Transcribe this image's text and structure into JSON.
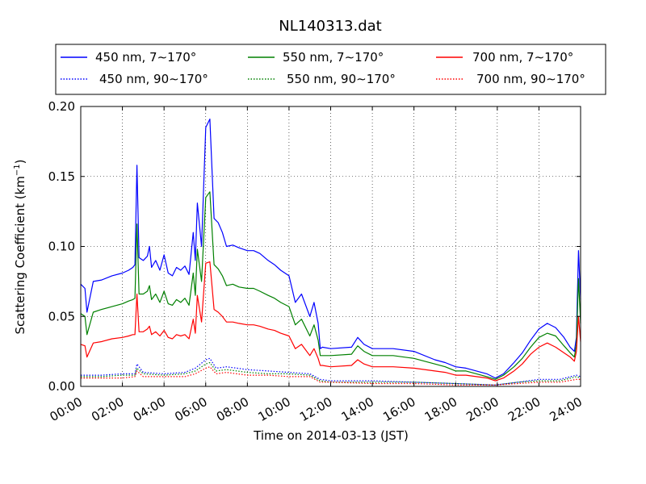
{
  "chart_data": {
    "type": "line",
    "title": "NL140313.dat",
    "xlabel": "Time on 2014-03-13 (JST)",
    "ylabel": "Scattering Coefficient (km",
    "ylabel_unit_exponent": "−1",
    "ylabel_close": ")",
    "xlim": [
      0,
      24
    ],
    "ylim": [
      0,
      0.2
    ],
    "x_ticks": [
      0,
      2,
      4,
      6,
      8,
      10,
      12,
      14,
      16,
      18,
      20,
      22,
      24
    ],
    "x_tick_labels": [
      "00:00",
      "02:00",
      "04:00",
      "06:00",
      "08:00",
      "10:00",
      "12:00",
      "14:00",
      "16:00",
      "18:00",
      "20:00",
      "22:00",
      "24:00"
    ],
    "y_ticks": [
      0,
      0.05,
      0.1,
      0.15,
      0.2
    ],
    "y_tick_labels": [
      "0.00",
      "0.05",
      "0.10",
      "0.15",
      "0.20"
    ],
    "grid": true,
    "legend_position": "top, above plot, 3 columns",
    "x_unit": "hours",
    "series": [
      {
        "name": "450 nm, 7∼170°",
        "color": "#0000ff",
        "style": "solid",
        "x": [
          0,
          0.2,
          0.3,
          0.6,
          1,
          1.5,
          2,
          2.3,
          2.5,
          2.6,
          2.7,
          2.8,
          3,
          3.2,
          3.3,
          3.4,
          3.6,
          3.8,
          4,
          4.2,
          4.4,
          4.6,
          4.8,
          5,
          5.2,
          5.4,
          5.5,
          5.6,
          5.8,
          6,
          6.2,
          6.4,
          6.6,
          6.8,
          7,
          7.3,
          7.6,
          8,
          8.3,
          8.6,
          9,
          9.3,
          9.6,
          10,
          10.3,
          10.6,
          11,
          11.2,
          11.4,
          11.5,
          11.6,
          12,
          13,
          13.3,
          13.6,
          14,
          15,
          16,
          17,
          17.5,
          18,
          18.5,
          19,
          19.5,
          19.9,
          20.3,
          20.8,
          21.2,
          21.6,
          22,
          22.4,
          22.8,
          23.2,
          23.5,
          23.7,
          23.8,
          23.9,
          24
        ],
        "y": [
          0.073,
          0.07,
          0.053,
          0.075,
          0.076,
          0.079,
          0.081,
          0.083,
          0.085,
          0.087,
          0.158,
          0.092,
          0.09,
          0.093,
          0.1,
          0.085,
          0.09,
          0.083,
          0.094,
          0.081,
          0.079,
          0.085,
          0.083,
          0.086,
          0.08,
          0.11,
          0.09,
          0.131,
          0.1,
          0.185,
          0.191,
          0.12,
          0.117,
          0.11,
          0.1,
          0.101,
          0.099,
          0.097,
          0.097,
          0.095,
          0.09,
          0.087,
          0.083,
          0.079,
          0.06,
          0.066,
          0.05,
          0.06,
          0.045,
          0.027,
          0.028,
          0.027,
          0.028,
          0.035,
          0.03,
          0.027,
          0.027,
          0.025,
          0.019,
          0.017,
          0.014,
          0.013,
          0.011,
          0.009,
          0.006,
          0.009,
          0.017,
          0.024,
          0.033,
          0.041,
          0.045,
          0.042,
          0.035,
          0.028,
          0.025,
          0.035,
          0.097,
          0.062
        ]
      },
      {
        "name": "550 nm, 7∼170°",
        "color": "#008000",
        "style": "solid",
        "x": [
          0,
          0.2,
          0.3,
          0.6,
          1,
          1.5,
          2,
          2.3,
          2.5,
          2.6,
          2.7,
          2.8,
          3,
          3.2,
          3.3,
          3.4,
          3.6,
          3.8,
          4,
          4.2,
          4.4,
          4.6,
          4.8,
          5,
          5.2,
          5.4,
          5.5,
          5.6,
          5.8,
          6,
          6.2,
          6.4,
          6.6,
          6.8,
          7,
          7.3,
          7.6,
          8,
          8.3,
          8.6,
          9,
          9.3,
          9.6,
          10,
          10.3,
          10.6,
          11,
          11.2,
          11.4,
          11.5,
          11.6,
          12,
          13,
          13.3,
          13.6,
          14,
          15,
          16,
          17,
          17.5,
          18,
          18.5,
          19,
          19.5,
          19.9,
          20.3,
          20.8,
          21.2,
          21.6,
          22,
          22.4,
          22.8,
          23.2,
          23.5,
          23.7,
          23.8,
          23.9,
          24
        ],
        "y": [
          0.052,
          0.05,
          0.037,
          0.053,
          0.055,
          0.057,
          0.059,
          0.061,
          0.062,
          0.063,
          0.116,
          0.066,
          0.066,
          0.068,
          0.072,
          0.062,
          0.066,
          0.06,
          0.068,
          0.059,
          0.058,
          0.062,
          0.06,
          0.063,
          0.058,
          0.081,
          0.065,
          0.098,
          0.075,
          0.135,
          0.139,
          0.087,
          0.084,
          0.079,
          0.072,
          0.073,
          0.071,
          0.07,
          0.07,
          0.068,
          0.065,
          0.063,
          0.06,
          0.057,
          0.044,
          0.048,
          0.036,
          0.044,
          0.033,
          0.022,
          0.022,
          0.022,
          0.023,
          0.029,
          0.025,
          0.022,
          0.022,
          0.02,
          0.016,
          0.014,
          0.011,
          0.011,
          0.009,
          0.007,
          0.005,
          0.008,
          0.014,
          0.02,
          0.028,
          0.035,
          0.038,
          0.036,
          0.029,
          0.024,
          0.021,
          0.03,
          0.077,
          0.045
        ]
      },
      {
        "name": "700 nm, 7∼170°",
        "color": "#ff0000",
        "style": "solid",
        "x": [
          0,
          0.2,
          0.3,
          0.6,
          1,
          1.5,
          2,
          2.3,
          2.5,
          2.6,
          2.7,
          2.8,
          3,
          3.2,
          3.3,
          3.4,
          3.6,
          3.8,
          4,
          4.2,
          4.4,
          4.6,
          4.8,
          5,
          5.2,
          5.4,
          5.5,
          5.6,
          5.8,
          6,
          6.2,
          6.4,
          6.6,
          6.8,
          7,
          7.3,
          7.6,
          8,
          8.3,
          8.6,
          9,
          9.3,
          9.6,
          10,
          10.3,
          10.6,
          11,
          11.2,
          11.4,
          11.5,
          11.6,
          12,
          13,
          13.3,
          13.6,
          14,
          15,
          16,
          17,
          17.5,
          18,
          18.5,
          19,
          19.5,
          19.9,
          20.3,
          20.8,
          21.2,
          21.6,
          22,
          22.4,
          22.8,
          23.2,
          23.5,
          23.7,
          23.8,
          23.9,
          24
        ],
        "y": [
          0.03,
          0.029,
          0.021,
          0.031,
          0.032,
          0.034,
          0.035,
          0.036,
          0.037,
          0.037,
          0.066,
          0.039,
          0.039,
          0.041,
          0.043,
          0.037,
          0.039,
          0.036,
          0.04,
          0.035,
          0.034,
          0.037,
          0.036,
          0.037,
          0.034,
          0.048,
          0.038,
          0.065,
          0.046,
          0.088,
          0.089,
          0.055,
          0.053,
          0.05,
          0.046,
          0.046,
          0.045,
          0.044,
          0.044,
          0.043,
          0.041,
          0.04,
          0.038,
          0.036,
          0.027,
          0.03,
          0.022,
          0.027,
          0.02,
          0.015,
          0.015,
          0.014,
          0.015,
          0.019,
          0.016,
          0.014,
          0.014,
          0.013,
          0.011,
          0.01,
          0.008,
          0.008,
          0.007,
          0.006,
          0.004,
          0.006,
          0.011,
          0.016,
          0.023,
          0.028,
          0.031,
          0.028,
          0.024,
          0.021,
          0.018,
          0.025,
          0.05,
          0.032
        ]
      },
      {
        "name": "450 nm, 90∼170°",
        "color": "#0000ff",
        "style": "dotted",
        "x": [
          0,
          1,
          2,
          2.6,
          2.7,
          3,
          4,
          5,
          5.5,
          6,
          6.2,
          6.5,
          7,
          7.5,
          8,
          9,
          10,
          11,
          11.5,
          12,
          14,
          16,
          18,
          19.9,
          21,
          22,
          23,
          23.8,
          24
        ],
        "y": [
          0.008,
          0.008,
          0.009,
          0.009,
          0.016,
          0.01,
          0.009,
          0.01,
          0.013,
          0.019,
          0.02,
          0.013,
          0.014,
          0.013,
          0.012,
          0.011,
          0.01,
          0.009,
          0.005,
          0.004,
          0.004,
          0.003,
          0.002,
          0.001,
          0.003,
          0.005,
          0.005,
          0.008,
          0.007
        ]
      },
      {
        "name": "550 nm, 90∼170°",
        "color": "#008000",
        "style": "dotted",
        "x": [
          0,
          1,
          2,
          2.6,
          2.7,
          3,
          4,
          5,
          5.5,
          6,
          6.2,
          6.5,
          7,
          7.5,
          8,
          9,
          10,
          11,
          11.5,
          12,
          14,
          16,
          18,
          19.9,
          21,
          22,
          23,
          23.8,
          24
        ],
        "y": [
          0.007,
          0.007,
          0.008,
          0.008,
          0.013,
          0.009,
          0.008,
          0.009,
          0.011,
          0.016,
          0.017,
          0.011,
          0.012,
          0.011,
          0.01,
          0.009,
          0.009,
          0.008,
          0.004,
          0.003,
          0.003,
          0.003,
          0.002,
          0.001,
          0.003,
          0.004,
          0.004,
          0.007,
          0.006
        ]
      },
      {
        "name": "700 nm, 90∼170°",
        "color": "#ff0000",
        "style": "dotted",
        "x": [
          0,
          1,
          2,
          2.6,
          2.7,
          3,
          4,
          5,
          5.5,
          6,
          6.2,
          6.5,
          7,
          7.5,
          8,
          9,
          10,
          11,
          11.5,
          12,
          14,
          16,
          18,
          19.9,
          21,
          22,
          23,
          23.8,
          24
        ],
        "y": [
          0.006,
          0.006,
          0.006,
          0.007,
          0.011,
          0.007,
          0.007,
          0.007,
          0.009,
          0.013,
          0.014,
          0.009,
          0.01,
          0.009,
          0.008,
          0.008,
          0.007,
          0.007,
          0.003,
          0.003,
          0.002,
          0.002,
          0.001,
          0.001,
          0.002,
          0.003,
          0.003,
          0.005,
          0.005
        ]
      }
    ]
  }
}
